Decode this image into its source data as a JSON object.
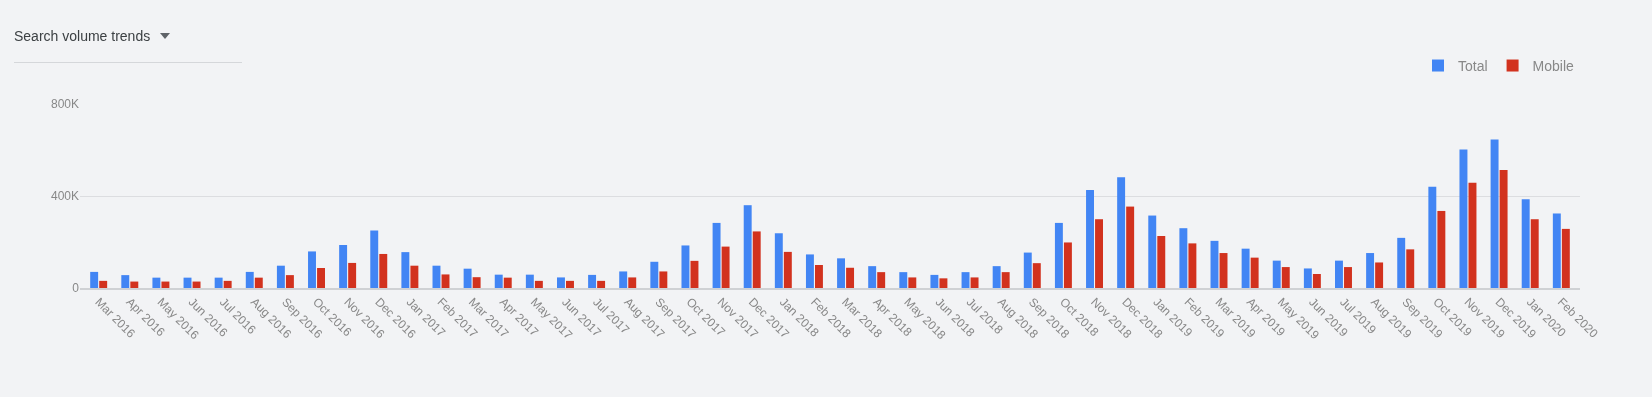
{
  "chart_data": {
    "type": "bar",
    "title": "Search volume trends",
    "categories": [
      "Mar 2016",
      "Apr 2016",
      "May 2016",
      "Jun 2016",
      "Jul 2016",
      "Aug 2016",
      "Sep 2016",
      "Oct 2016",
      "Nov 2016",
      "Dec 2016",
      "Jan 2017",
      "Feb 2017",
      "Mar 2017",
      "Apr 2017",
      "May 2017",
      "Jun 2017",
      "Jul 2017",
      "Aug 2017",
      "Sep 2017",
      "Oct 2017",
      "Nov 2017",
      "Dec 2017",
      "Jan 2018",
      "Feb 2018",
      "Mar 2018",
      "Apr 2018",
      "May 2018",
      "Jun 2018",
      "Jul 2018",
      "Aug 2018",
      "Sep 2018",
      "Oct 2018",
      "Nov 2018",
      "Dec 2018",
      "Jan 2019",
      "Feb 2019",
      "Mar 2019",
      "Apr 2019",
      "May 2019",
      "Jun 2019",
      "Jul 2019",
      "Aug 2019",
      "Sep 2019",
      "Oct 2019",
      "Nov 2019",
      "Dec 2019",
      "Jan 2020",
      "Feb 2020"
    ],
    "series": [
      {
        "name": "Total",
        "color": "#4285f4",
        "values": [
          70000,
          56000,
          45000,
          45000,
          45000,
          70000,
          97000,
          159000,
          187000,
          250000,
          156000,
          97000,
          84000,
          58000,
          58000,
          46000,
          57000,
          72000,
          114000,
          185000,
          283000,
          360000,
          238000,
          146000,
          129000,
          95000,
          69000,
          57000,
          69000,
          95000,
          154000,
          283000,
          426000,
          481000,
          315000,
          260000,
          205000,
          171000,
          119000,
          85000,
          119000,
          152000,
          218000,
          440000,
          602000,
          646000,
          386000,
          324000
        ]
      },
      {
        "name": "Mobile",
        "color": "#d2321e",
        "values": [
          31000,
          28000,
          28000,
          28000,
          31000,
          45000,
          56000,
          87000,
          109000,
          148000,
          97000,
          59000,
          47000,
          45000,
          31000,
          31000,
          31000,
          46000,
          72000,
          118000,
          180000,
          246000,
          157000,
          100000,
          88000,
          69000,
          46000,
          42000,
          46000,
          69000,
          108000,
          198000,
          299000,
          354000,
          226000,
          194000,
          152000,
          132000,
          91000,
          61000,
          91000,
          111000,
          168000,
          335000,
          458000,
          513000,
          299000,
          257000
        ]
      }
    ],
    "ylim": [
      0,
      800000
    ],
    "yticks": [
      {
        "value": 0,
        "label": "0"
      },
      {
        "value": 400000,
        "label": "400K"
      },
      {
        "value": 800000,
        "label": "800K"
      }
    ],
    "grid": "y",
    "legend": "top right"
  }
}
